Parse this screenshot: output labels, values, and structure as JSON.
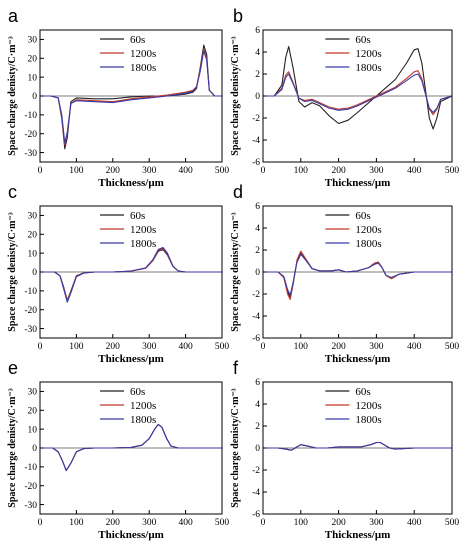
{
  "colors": {
    "s60": "#222222",
    "s1200": "#c0392b",
    "s1800": "#3a3aa8"
  },
  "chart_data": [
    {
      "type": "line",
      "panel": "a",
      "xlabel": "Thickness/μm",
      "ylabel": "Space charge denisty/C·m⁻³",
      "xlim": [
        0,
        500
      ],
      "ylim": [
        -35,
        35
      ],
      "xticks": [
        0,
        100,
        200,
        300,
        400,
        500
      ],
      "yticks": [
        -30,
        -20,
        -10,
        0,
        10,
        20,
        30
      ],
      "series": [
        {
          "name": "60s",
          "x": [
            0,
            30,
            50,
            60,
            68,
            75,
            85,
            100,
            150,
            200,
            250,
            300,
            350,
            400,
            420,
            430,
            440,
            450,
            458,
            465,
            480,
            500
          ],
          "y": [
            0,
            0,
            -1,
            -12,
            -28,
            -22,
            -3,
            -1,
            -1.5,
            -1.5,
            -0.5,
            0,
            0,
            1,
            2,
            4,
            15,
            27,
            22,
            3,
            0,
            0
          ]
        },
        {
          "name": "1200s",
          "x": [
            0,
            30,
            50,
            60,
            68,
            75,
            85,
            100,
            150,
            200,
            250,
            300,
            350,
            400,
            420,
            430,
            440,
            450,
            458,
            465,
            480,
            500
          ],
          "y": [
            0,
            0,
            -1,
            -11,
            -26,
            -20,
            -4,
            -2,
            -2.5,
            -3,
            -1.5,
            -0.5,
            0.5,
            2,
            3,
            5,
            14,
            25,
            20,
            3,
            0,
            0
          ]
        },
        {
          "name": "1800s",
          "x": [
            0,
            30,
            50,
            60,
            68,
            75,
            85,
            100,
            150,
            200,
            250,
            300,
            350,
            400,
            420,
            430,
            440,
            450,
            458,
            465,
            480,
            500
          ],
          "y": [
            0,
            0,
            -1,
            -10,
            -25,
            -19,
            -4,
            -2.5,
            -3,
            -3.5,
            -2,
            -1,
            0,
            1.5,
            2.5,
            4.5,
            13,
            24,
            19,
            3,
            0,
            0
          ]
        }
      ]
    },
    {
      "type": "line",
      "panel": "b",
      "xlabel": "Thickness/μm",
      "ylabel": "Space charge denisty/C·m⁻³",
      "xlim": [
        0,
        500
      ],
      "ylim": [
        -6,
        6
      ],
      "xticks": [
        0,
        100,
        200,
        300,
        400,
        500
      ],
      "yticks": [
        -6,
        -4,
        -2,
        0,
        2,
        4,
        6
      ],
      "series": [
        {
          "name": "60s",
          "x": [
            0,
            30,
            50,
            60,
            68,
            80,
            95,
            110,
            130,
            150,
            175,
            200,
            225,
            250,
            300,
            350,
            380,
            400,
            410,
            420,
            440,
            450,
            460,
            470,
            500
          ],
          "y": [
            0,
            0,
            1,
            3.5,
            4.5,
            2.5,
            -0.5,
            -1,
            -0.6,
            -0.9,
            -1.8,
            -2.5,
            -2.2,
            -1.5,
            0,
            1.5,
            3,
            4.2,
            4.3,
            3,
            -2,
            -3,
            -2,
            -0.5,
            0
          ]
        },
        {
          "name": "1200s",
          "x": [
            0,
            30,
            50,
            60,
            68,
            80,
            95,
            110,
            130,
            150,
            175,
            200,
            225,
            250,
            300,
            350,
            380,
            400,
            410,
            420,
            440,
            450,
            460,
            470,
            500
          ],
          "y": [
            0,
            0,
            0.7,
            1.9,
            2.2,
            1.2,
            -0.2,
            -0.4,
            -0.3,
            -0.6,
            -1,
            -1.2,
            -1.1,
            -0.8,
            0,
            0.8,
            1.6,
            2.2,
            2.3,
            1.6,
            -1.2,
            -1.7,
            -1.2,
            -0.3,
            0
          ]
        },
        {
          "name": "1800s",
          "x": [
            0,
            30,
            50,
            60,
            68,
            80,
            95,
            110,
            130,
            150,
            175,
            200,
            225,
            250,
            300,
            350,
            380,
            400,
            410,
            420,
            440,
            450,
            460,
            470,
            500
          ],
          "y": [
            0,
            0,
            0.6,
            1.7,
            2.0,
            1.1,
            -0.2,
            -0.5,
            -0.4,
            -0.7,
            -1.1,
            -1.3,
            -1.2,
            -0.9,
            -0.1,
            0.7,
            1.4,
            1.9,
            2.0,
            1.4,
            -1.1,
            -1.5,
            -1.1,
            -0.3,
            0
          ]
        }
      ]
    },
    {
      "type": "line",
      "panel": "c",
      "xlabel": "Thickness/μm",
      "ylabel": "Space charge denisty/C·m⁻³",
      "xlim": [
        0,
        500
      ],
      "ylim": [
        -35,
        35
      ],
      "xticks": [
        0,
        100,
        200,
        300,
        400,
        500
      ],
      "yticks": [
        -30,
        -20,
        -10,
        0,
        10,
        20,
        30
      ],
      "series": [
        {
          "name": "60s",
          "x": [
            0,
            40,
            55,
            65,
            75,
            85,
            100,
            120,
            150,
            200,
            250,
            290,
            310,
            325,
            338,
            350,
            365,
            380,
            400,
            500
          ],
          "y": [
            0,
            0,
            -2,
            -8,
            -15,
            -10,
            -2,
            -0.5,
            0,
            0,
            0.5,
            2,
            6,
            11,
            12,
            9,
            3,
            0.5,
            0,
            0
          ]
        },
        {
          "name": "1200s",
          "x": [
            0,
            40,
            55,
            65,
            75,
            85,
            100,
            120,
            150,
            200,
            250,
            290,
            310,
            325,
            338,
            350,
            365,
            380,
            400,
            500
          ],
          "y": [
            0,
            0,
            -2,
            -8.5,
            -15.5,
            -10.5,
            -2.2,
            -0.5,
            0,
            0,
            0.5,
            2,
            6,
            11.5,
            12.5,
            9.5,
            3,
            0.5,
            0,
            0
          ]
        },
        {
          "name": "1800s",
          "x": [
            0,
            40,
            55,
            65,
            75,
            85,
            100,
            120,
            150,
            200,
            250,
            290,
            310,
            325,
            338,
            350,
            365,
            380,
            400,
            500
          ],
          "y": [
            0,
            0,
            -2,
            -9,
            -16,
            -11,
            -2.5,
            -0.6,
            0,
            0,
            0.5,
            2.2,
            6.5,
            12,
            13,
            10,
            3.2,
            0.5,
            0,
            0
          ]
        }
      ]
    },
    {
      "type": "line",
      "panel": "d",
      "xlabel": "Thickness/μm",
      "ylabel": "Space charge denisty/C·m⁻³",
      "xlim": [
        0,
        500
      ],
      "ylim": [
        -6,
        6
      ],
      "xticks": [
        0,
        100,
        200,
        300,
        400,
        500
      ],
      "yticks": [
        -6,
        -4,
        -2,
        0,
        2,
        4,
        6
      ],
      "series": [
        {
          "name": "60s",
          "x": [
            0,
            40,
            55,
            65,
            72,
            80,
            90,
            100,
            115,
            130,
            150,
            180,
            200,
            220,
            250,
            280,
            295,
            305,
            315,
            325,
            340,
            360,
            400,
            500
          ],
          "y": [
            0,
            0,
            -0.5,
            -1.8,
            -2.3,
            -1,
            1,
            1.7,
            1,
            0.3,
            0.1,
            0.1,
            0.2,
            0,
            0.1,
            0.4,
            0.8,
            0.9,
            0.4,
            -0.3,
            -0.6,
            -0.2,
            0,
            0
          ]
        },
        {
          "name": "1200s",
          "x": [
            0,
            40,
            55,
            65,
            72,
            80,
            90,
            100,
            115,
            130,
            150,
            180,
            200,
            220,
            250,
            280,
            295,
            305,
            315,
            325,
            340,
            360,
            400,
            500
          ],
          "y": [
            0,
            0,
            -0.5,
            -2,
            -2.5,
            -1.1,
            1.1,
            1.9,
            1.1,
            0.3,
            0.1,
            0.1,
            0.2,
            0,
            0.1,
            0.4,
            0.8,
            0.9,
            0.4,
            -0.3,
            -0.6,
            -0.2,
            0,
            0
          ]
        },
        {
          "name": "1800s",
          "x": [
            0,
            40,
            55,
            65,
            72,
            80,
            90,
            100,
            115,
            130,
            150,
            180,
            200,
            220,
            250,
            280,
            295,
            305,
            315,
            325,
            340,
            360,
            400,
            500
          ],
          "y": [
            0,
            0,
            -0.4,
            -1.6,
            -2.1,
            -0.9,
            0.9,
            1.6,
            1,
            0.3,
            0.1,
            0.1,
            0.2,
            0,
            0.1,
            0.4,
            0.7,
            0.8,
            0.4,
            -0.3,
            -0.5,
            -0.2,
            0,
            0
          ]
        }
      ]
    },
    {
      "type": "line",
      "panel": "e",
      "xlabel": "Thickness/μm",
      "ylabel": "Space charge denisty/C·m⁻³",
      "xlim": [
        0,
        500
      ],
      "ylim": [
        -35,
        35
      ],
      "xticks": [
        0,
        100,
        200,
        300,
        400,
        500
      ],
      "yticks": [
        -30,
        -20,
        -10,
        0,
        10,
        20,
        30
      ],
      "series": [
        {
          "name": "60s",
          "x": [
            0,
            35,
            50,
            62,
            72,
            85,
            100,
            120,
            150,
            200,
            250,
            280,
            300,
            315,
            325,
            335,
            348,
            360,
            380,
            400,
            500
          ],
          "y": [
            0,
            0,
            -2,
            -7,
            -12,
            -8,
            -2,
            -0.3,
            0,
            0,
            0.3,
            1.5,
            5,
            10,
            12.5,
            11,
            5,
            1,
            0,
            0,
            0
          ]
        },
        {
          "name": "1200s",
          "x": [
            0,
            35,
            50,
            62,
            72,
            85,
            100,
            120,
            150,
            200,
            250,
            280,
            300,
            315,
            325,
            335,
            348,
            360,
            380,
            400,
            500
          ],
          "y": [
            0,
            0,
            -2,
            -7,
            -12,
            -8,
            -2,
            -0.3,
            0,
            0,
            0.3,
            1.5,
            5,
            10,
            12.5,
            11,
            5,
            1,
            0,
            0,
            0
          ]
        },
        {
          "name": "1800s",
          "x": [
            0,
            35,
            50,
            62,
            72,
            85,
            100,
            120,
            150,
            200,
            250,
            280,
            300,
            315,
            325,
            335,
            348,
            360,
            380,
            400,
            500
          ],
          "y": [
            0,
            0,
            -2,
            -7,
            -12,
            -8,
            -2,
            -0.3,
            0,
            0,
            0.3,
            1.5,
            5,
            10,
            12.5,
            11,
            5,
            1,
            0,
            0,
            0
          ]
        }
      ]
    },
    {
      "type": "line",
      "panel": "f",
      "xlabel": "Thickness/μm",
      "ylabel": "Space charge denisty/C·m⁻³",
      "xlim": [
        0,
        500
      ],
      "ylim": [
        -6,
        6
      ],
      "xticks": [
        0,
        100,
        200,
        300,
        400,
        500
      ],
      "yticks": [
        -6,
        -4,
        -2,
        0,
        2,
        4,
        6
      ],
      "series": [
        {
          "name": "60s",
          "x": [
            0,
            40,
            60,
            75,
            90,
            100,
            115,
            140,
            170,
            200,
            230,
            260,
            285,
            300,
            310,
            320,
            335,
            350,
            400,
            500
          ],
          "y": [
            0,
            0,
            -0.1,
            -0.2,
            0.1,
            0.3,
            0.2,
            0,
            0,
            0.1,
            0.1,
            0.1,
            0.3,
            0.5,
            0.5,
            0.3,
            0,
            -0.1,
            0,
            0
          ]
        },
        {
          "name": "1200s",
          "x": [
            0,
            40,
            60,
            75,
            90,
            100,
            115,
            140,
            170,
            200,
            230,
            260,
            285,
            300,
            310,
            320,
            335,
            350,
            400,
            500
          ],
          "y": [
            0,
            0,
            -0.1,
            -0.2,
            0.1,
            0.3,
            0.2,
            0,
            0,
            0.1,
            0.1,
            0.1,
            0.3,
            0.5,
            0.5,
            0.3,
            0,
            -0.1,
            0,
            0
          ]
        },
        {
          "name": "1800s",
          "x": [
            0,
            40,
            60,
            75,
            90,
            100,
            115,
            140,
            170,
            200,
            230,
            260,
            285,
            300,
            310,
            320,
            335,
            350,
            400,
            500
          ],
          "y": [
            0,
            0,
            -0.1,
            -0.2,
            0.1,
            0.3,
            0.2,
            0,
            0,
            0.1,
            0.1,
            0.1,
            0.3,
            0.5,
            0.5,
            0.3,
            0,
            -0.1,
            0,
            0
          ]
        }
      ]
    }
  ]
}
